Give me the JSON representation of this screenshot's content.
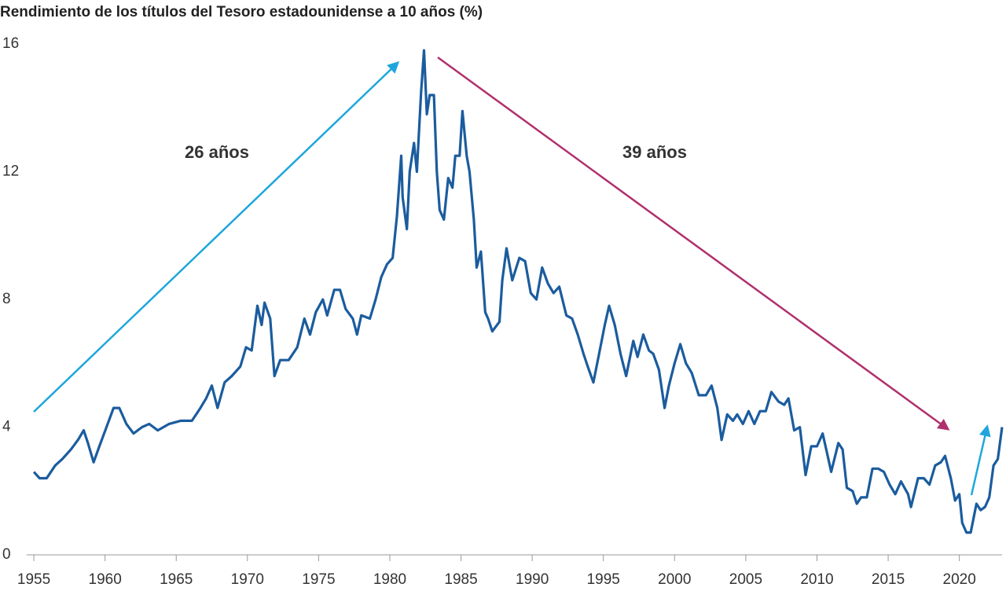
{
  "chart_data": {
    "type": "line",
    "title": "Rendimiento de los títulos del Tesoro estadounidense a 10 años (%)",
    "annotations": [
      {
        "text": "26 años",
        "color": "#1ea6dc"
      },
      {
        "text": "39 años",
        "color": "#b0306e"
      }
    ],
    "xlim": [
      1954.5,
      2023
    ],
    "xticks": [
      1955,
      1960,
      1965,
      1970,
      1975,
      1980,
      1985,
      1990,
      1995,
      2000,
      2005,
      2010,
      2015,
      2020
    ],
    "ylim": [
      0,
      16
    ],
    "yticks": [
      0,
      4,
      8,
      12,
      16
    ],
    "grid": false,
    "series": [
      {
        "color": "#1b5c9e",
        "x": [
          1955.0,
          1955.4,
          1955.9,
          1956.5,
          1957.0,
          1957.6,
          1958.1,
          1958.5,
          1958.8,
          1959.2,
          1959.6,
          1960.1,
          1960.6,
          1961.0,
          1961.5,
          1962.0,
          1962.6,
          1963.1,
          1963.7,
          1964.5,
          1965.3,
          1966.1,
          1966.7,
          1967.1,
          1967.5,
          1967.9,
          1968.4,
          1968.9,
          1969.5,
          1969.9,
          1970.3,
          1970.7,
          1971.0,
          1971.2,
          1971.6,
          1971.9,
          1972.3,
          1972.9,
          1973.5,
          1974.0,
          1974.4,
          1974.8,
          1975.3,
          1975.6,
          1976.1,
          1976.5,
          1976.9,
          1977.4,
          1977.7,
          1978.0,
          1978.6,
          1979.0,
          1979.4,
          1979.8,
          1980.2,
          1980.5,
          1980.8,
          1980.9,
          1981.2,
          1981.4,
          1981.7,
          1981.9,
          1982.2,
          1982.4,
          1982.6,
          1982.8,
          1983.1,
          1983.3,
          1983.5,
          1983.8,
          1984.1,
          1984.4,
          1984.6,
          1984.9,
          1985.1,
          1985.4,
          1985.6,
          1985.9,
          1986.1,
          1986.4,
          1986.7,
          1986.9,
          1987.2,
          1987.7,
          1987.9,
          1988.2,
          1988.6,
          1989.1,
          1989.5,
          1989.9,
          1990.3,
          1990.7,
          1991.1,
          1991.5,
          1991.9,
          1992.4,
          1992.8,
          1993.2,
          1993.6,
          1993.9,
          1994.3,
          1994.7,
          1995.1,
          1995.4,
          1995.8,
          1996.2,
          1996.6,
          1997.1,
          1997.4,
          1997.8,
          1998.2,
          1998.5,
          1998.9,
          1999.3,
          1999.6,
          2000.0,
          2000.4,
          2000.8,
          2001.2,
          2001.7,
          2002.2,
          2002.6,
          2003.0,
          2003.3,
          2003.7,
          2004.1,
          2004.4,
          2004.8,
          2005.2,
          2005.6,
          2006.0,
          2006.4,
          2006.8,
          2007.3,
          2007.7,
          2008.0,
          2008.4,
          2008.8,
          2009.2,
          2009.6,
          2010.0,
          2010.4,
          2010.7,
          2011.0,
          2011.5,
          2011.8,
          2012.1,
          2012.5,
          2012.8,
          2013.1,
          2013.5,
          2013.9,
          2014.3,
          2014.7,
          2015.1,
          2015.5,
          2015.9,
          2016.4,
          2016.6,
          2017.1,
          2017.5,
          2017.9,
          2018.3,
          2018.7,
          2019.0,
          2019.4,
          2019.7,
          2020.0,
          2020.2,
          2020.5,
          2020.8,
          2021.2,
          2021.5,
          2021.8,
          2022.1,
          2022.4,
          2022.7,
          2023.0
        ],
        "values": [
          2.6,
          2.4,
          2.4,
          2.8,
          3.0,
          3.3,
          3.6,
          3.9,
          3.5,
          2.9,
          3.4,
          4.0,
          4.6,
          4.6,
          4.1,
          3.8,
          4.0,
          4.1,
          3.9,
          4.1,
          4.2,
          4.2,
          4.6,
          4.9,
          5.3,
          4.6,
          5.4,
          5.6,
          5.9,
          6.5,
          6.4,
          7.8,
          7.2,
          7.9,
          7.4,
          5.6,
          6.1,
          6.1,
          6.5,
          7.4,
          6.9,
          7.6,
          8.0,
          7.5,
          8.3,
          8.3,
          7.7,
          7.4,
          6.9,
          7.5,
          7.4,
          8.0,
          8.7,
          9.1,
          9.3,
          10.6,
          12.5,
          11.2,
          10.2,
          12.0,
          12.9,
          12.0,
          14.5,
          15.8,
          13.8,
          14.4,
          14.4,
          12.0,
          10.8,
          10.5,
          11.8,
          11.5,
          12.5,
          12.5,
          13.9,
          12.5,
          12.0,
          10.5,
          9.0,
          9.5,
          7.6,
          7.4,
          7.0,
          7.3,
          8.6,
          9.6,
          8.6,
          9.3,
          9.2,
          8.2,
          8.0,
          9.0,
          8.5,
          8.2,
          8.4,
          7.5,
          7.4,
          6.9,
          6.3,
          5.9,
          5.4,
          6.3,
          7.2,
          7.8,
          7.2,
          6.3,
          5.6,
          6.7,
          6.2,
          6.9,
          6.4,
          6.3,
          5.8,
          4.6,
          5.3,
          6.0,
          6.6,
          6.0,
          5.7,
          5.0,
          5.0,
          5.3,
          4.6,
          3.6,
          4.4,
          4.2,
          4.4,
          4.1,
          4.5,
          4.1,
          4.5,
          4.5,
          5.1,
          4.8,
          4.7,
          4.9,
          3.9,
          4.0,
          2.5,
          3.4,
          3.4,
          3.8,
          3.2,
          2.6,
          3.5,
          3.3,
          2.1,
          2.0,
          1.6,
          1.8,
          1.8,
          2.7,
          2.7,
          2.6,
          2.2,
          1.9,
          2.3,
          1.9,
          1.5,
          2.4,
          2.4,
          2.2,
          2.8,
          2.9,
          3.1,
          2.4,
          1.7,
          1.9,
          1.0,
          0.7,
          0.7,
          1.6,
          1.4,
          1.5,
          1.8,
          2.8,
          3.0,
          4.0
        ]
      }
    ]
  }
}
